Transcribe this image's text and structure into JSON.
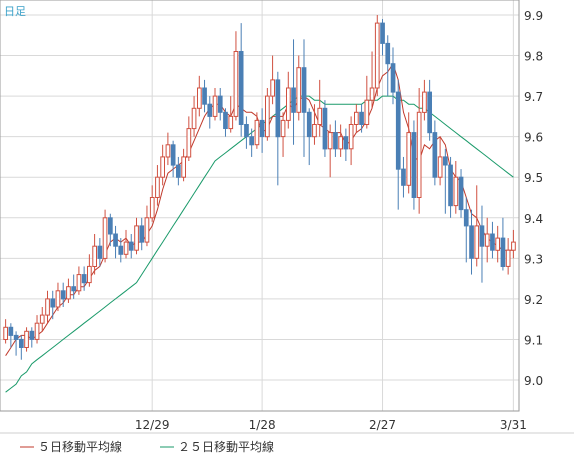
{
  "chart_data": {
    "type": "candlestick",
    "period_label": "日足",
    "x_tick_labels": [
      "12/29",
      "1/28",
      "2/27",
      "3/31"
    ],
    "y_tick_labels": [
      "9.9",
      "9.8",
      "9.7",
      "9.6",
      "9.5",
      "9.4",
      "9.3",
      "9.2",
      "9.1",
      "9.0"
    ],
    "ylim": [
      8.92,
      9.93
    ],
    "colors": {
      "up": "#d05040",
      "down": "#4a7fb5",
      "ma5": "#c0392b",
      "ma25": "#1a9a6a",
      "grid": "#d9d9d9"
    },
    "legend": [
      {
        "name": "５日移動平均線",
        "color": "#c0392b"
      },
      {
        "name": "２５日移動平均線",
        "color": "#1a9a6a"
      }
    ],
    "candles": [
      [
        9.1,
        9.13,
        9.15,
        9.09
      ],
      [
        9.13,
        9.11,
        9.14,
        9.08
      ],
      [
        9.11,
        9.1,
        9.12,
        9.06
      ],
      [
        9.1,
        9.08,
        9.11,
        9.05
      ],
      [
        9.08,
        9.12,
        9.13,
        9.07
      ],
      [
        9.12,
        9.1,
        9.13,
        9.08
      ],
      [
        9.1,
        9.14,
        9.16,
        9.09
      ],
      [
        9.14,
        9.16,
        9.18,
        9.12
      ],
      [
        9.16,
        9.2,
        9.22,
        9.14
      ],
      [
        9.2,
        9.18,
        9.22,
        9.15
      ],
      [
        9.18,
        9.22,
        9.24,
        9.17
      ],
      [
        9.22,
        9.2,
        9.24,
        9.18
      ],
      [
        9.2,
        9.23,
        9.25,
        9.19
      ],
      [
        9.23,
        9.22,
        9.26,
        9.2
      ],
      [
        9.22,
        9.26,
        9.28,
        9.21
      ],
      [
        9.26,
        9.24,
        9.28,
        9.22
      ],
      [
        9.24,
        9.28,
        9.31,
        9.23
      ],
      [
        9.28,
        9.33,
        9.36,
        9.26
      ],
      [
        9.33,
        9.3,
        9.35,
        9.28
      ],
      [
        9.3,
        9.4,
        9.42,
        9.29
      ],
      [
        9.4,
        9.36,
        9.41,
        9.33
      ],
      [
        9.36,
        9.33,
        9.38,
        9.3
      ],
      [
        9.33,
        9.31,
        9.35,
        9.29
      ],
      [
        9.31,
        9.34,
        9.37,
        9.3
      ],
      [
        9.34,
        9.32,
        9.36,
        9.3
      ],
      [
        9.32,
        9.38,
        9.4,
        9.31
      ],
      [
        9.38,
        9.34,
        9.4,
        9.32
      ],
      [
        9.34,
        9.4,
        9.43,
        9.33
      ],
      [
        9.4,
        9.45,
        9.48,
        9.39
      ],
      [
        9.45,
        9.5,
        9.53,
        9.43
      ],
      [
        9.5,
        9.55,
        9.58,
        9.48
      ],
      [
        9.55,
        9.58,
        9.61,
        9.53
      ],
      [
        9.58,
        9.53,
        9.59,
        9.5
      ],
      [
        9.53,
        9.5,
        9.55,
        9.48
      ],
      [
        9.5,
        9.55,
        9.57,
        9.49
      ],
      [
        9.55,
        9.62,
        9.65,
        9.54
      ],
      [
        9.62,
        9.67,
        9.7,
        9.6
      ],
      [
        9.67,
        9.72,
        9.75,
        9.65
      ],
      [
        9.72,
        9.68,
        9.74,
        9.66
      ],
      [
        9.68,
        9.65,
        9.7,
        9.62
      ],
      [
        9.65,
        9.7,
        9.72,
        9.64
      ],
      [
        9.7,
        9.66,
        9.72,
        9.64
      ],
      [
        9.66,
        9.62,
        9.67,
        9.6
      ],
      [
        9.62,
        9.65,
        9.7,
        9.61
      ],
      [
        9.65,
        9.81,
        9.86,
        9.64
      ],
      [
        9.81,
        9.63,
        9.88,
        9.6
      ],
      [
        9.63,
        9.6,
        9.65,
        9.57
      ],
      [
        9.6,
        9.58,
        9.62,
        9.55
      ],
      [
        9.58,
        9.64,
        9.66,
        9.57
      ],
      [
        9.64,
        9.6,
        9.67,
        9.56
      ],
      [
        9.6,
        9.7,
        9.72,
        9.59
      ],
      [
        9.7,
        9.74,
        9.8,
        9.68
      ],
      [
        9.74,
        9.6,
        9.76,
        9.48
      ],
      [
        9.6,
        9.64,
        9.66,
        9.55
      ],
      [
        9.64,
        9.72,
        9.76,
        9.62
      ],
      [
        9.72,
        9.66,
        9.84,
        9.58
      ],
      [
        9.66,
        9.77,
        9.8,
        9.64
      ],
      [
        9.77,
        9.66,
        9.84,
        9.55
      ],
      [
        9.66,
        9.6,
        9.67,
        9.53
      ],
      [
        9.6,
        9.63,
        9.68,
        9.58
      ],
      [
        9.63,
        9.67,
        9.74,
        9.6
      ],
      [
        9.67,
        9.57,
        9.69,
        9.55
      ],
      [
        9.57,
        9.61,
        9.63,
        9.5
      ],
      [
        9.61,
        9.57,
        9.64,
        9.55
      ],
      [
        9.57,
        9.6,
        9.63,
        9.55
      ],
      [
        9.6,
        9.57,
        9.62,
        9.54
      ],
      [
        9.57,
        9.63,
        9.65,
        9.53
      ],
      [
        9.63,
        9.66,
        9.68,
        9.61
      ],
      [
        9.66,
        9.63,
        9.68,
        9.61
      ],
      [
        9.63,
        9.69,
        9.75,
        9.62
      ],
      [
        9.69,
        9.72,
        9.81,
        9.67
      ],
      [
        9.72,
        9.88,
        9.9,
        9.7
      ],
      [
        9.88,
        9.83,
        9.89,
        9.8
      ],
      [
        9.83,
        9.78,
        9.85,
        9.7
      ],
      [
        9.78,
        9.71,
        9.82,
        9.68
      ],
      [
        9.71,
        9.52,
        9.74,
        9.42
      ],
      [
        9.52,
        9.48,
        9.55,
        9.45
      ],
      [
        9.48,
        9.61,
        9.66,
        9.46
      ],
      [
        9.61,
        9.45,
        9.64,
        9.42
      ],
      [
        9.45,
        9.66,
        9.72,
        9.41
      ],
      [
        9.66,
        9.71,
        9.74,
        9.64
      ],
      [
        9.71,
        9.61,
        9.74,
        9.59
      ],
      [
        9.61,
        9.5,
        9.64,
        9.48
      ],
      [
        9.5,
        9.55,
        9.6,
        9.48
      ],
      [
        9.55,
        9.53,
        9.57,
        9.41
      ],
      [
        9.53,
        9.43,
        9.55,
        9.4
      ],
      [
        9.43,
        9.5,
        9.54,
        9.41
      ],
      [
        9.5,
        9.42,
        9.52,
        9.4
      ],
      [
        9.42,
        9.38,
        9.45,
        9.29
      ],
      [
        9.38,
        9.3,
        9.42,
        9.26
      ],
      [
        9.3,
        9.38,
        9.48,
        9.28
      ],
      [
        9.38,
        9.33,
        9.43,
        9.24
      ],
      [
        9.33,
        9.36,
        9.4,
        9.29
      ],
      [
        9.36,
        9.32,
        9.39,
        9.3
      ],
      [
        9.32,
        9.35,
        9.38,
        9.29
      ],
      [
        9.35,
        9.28,
        9.4,
        9.27
      ],
      [
        9.28,
        9.32,
        9.35,
        9.26
      ],
      [
        9.32,
        9.34,
        9.37,
        9.3
      ]
    ],
    "ma5": [
      9.06,
      9.08,
      9.1,
      9.11,
      9.11,
      9.1,
      9.11,
      9.12,
      9.14,
      9.16,
      9.18,
      9.19,
      9.21,
      9.21,
      9.23,
      9.23,
      9.25,
      9.27,
      9.28,
      9.31,
      9.34,
      9.35,
      9.34,
      9.35,
      9.33,
      9.34,
      9.34,
      9.36,
      9.38,
      9.42,
      9.47,
      9.51,
      9.52,
      9.53,
      9.54,
      9.56,
      9.59,
      9.62,
      9.65,
      9.67,
      9.68,
      9.68,
      9.66,
      9.65,
      9.68,
      9.67,
      9.66,
      9.66,
      9.65,
      9.61,
      9.62,
      9.65,
      9.65,
      9.65,
      9.68,
      9.67,
      9.69,
      9.7,
      9.69,
      9.66,
      9.63,
      9.62,
      9.61,
      9.61,
      9.61,
      9.58,
      9.59,
      9.61,
      9.62,
      9.64,
      9.67,
      9.72,
      9.75,
      9.76,
      9.78,
      9.74,
      9.66,
      9.62,
      9.55,
      9.54,
      9.58,
      9.57,
      9.59,
      9.6,
      9.58,
      9.52,
      9.5,
      9.49,
      9.45,
      9.41,
      9.4,
      9.37,
      9.35,
      9.34,
      9.33,
      9.32,
      9.32,
      9.32
    ],
    "ma25": [
      8.97,
      8.98,
      8.99,
      9.01,
      9.02,
      9.04,
      9.05,
      9.06,
      9.07,
      9.08,
      9.09,
      9.1,
      9.11,
      9.12,
      9.13,
      9.14,
      9.15,
      9.16,
      9.17,
      9.18,
      9.19,
      9.2,
      9.21,
      9.22,
      9.23,
      9.24,
      9.26,
      9.28,
      9.3,
      9.32,
      9.34,
      9.36,
      9.38,
      9.4,
      9.42,
      9.44,
      9.46,
      9.48,
      9.5,
      9.52,
      9.54,
      9.55,
      9.56,
      9.57,
      9.58,
      9.59,
      9.6,
      9.61,
      9.62,
      9.63,
      9.64,
      9.65,
      9.66,
      9.67,
      9.68,
      9.69,
      9.7,
      9.7,
      9.7,
      9.69,
      9.69,
      9.68,
      9.68,
      9.68,
      9.68,
      9.68,
      9.68,
      9.68,
      9.68,
      9.69,
      9.69,
      9.69,
      9.7,
      9.7,
      9.7,
      9.69,
      9.69,
      9.68,
      9.68,
      9.67,
      9.67,
      9.66,
      9.65,
      9.64,
      9.63,
      9.62,
      9.61,
      9.6,
      9.59,
      9.58,
      9.57,
      9.56,
      9.55,
      9.54,
      9.53,
      9.52,
      9.51,
      9.5
    ]
  }
}
